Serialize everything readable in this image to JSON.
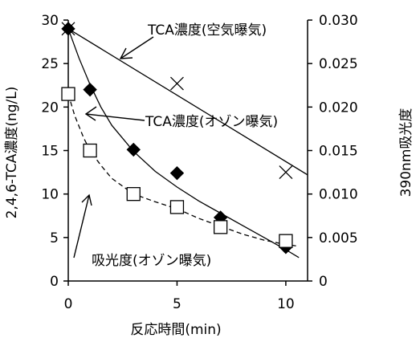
{
  "chart_data": {
    "type": "scatter",
    "xlabel": "反応時間(min)",
    "ylabel": "2,4,6-TCA濃度(ng/L)",
    "y2label": "390nm吸光度",
    "xlim": [
      0,
      11
    ],
    "ylim": [
      0,
      30
    ],
    "y2lim": [
      0,
      0.03
    ],
    "x_ticks": [
      "0",
      "5",
      "10"
    ],
    "y_ticks": [
      "0",
      "5",
      "10",
      "15",
      "20",
      "25",
      "30"
    ],
    "y2_ticks": [
      "0",
      "0.005",
      "0.010",
      "0.015",
      "0.020",
      "0.025",
      "0.030"
    ],
    "grid": false,
    "series": [
      {
        "name": "TCA濃度(空気曝気)",
        "marker": "x",
        "axis": "left",
        "points": [
          [
            0,
            29.0
          ],
          [
            5,
            22.7
          ],
          [
            10,
            12.5
          ]
        ],
        "fit": [
          [
            0,
            29.0
          ],
          [
            11,
            12.2
          ]
        ],
        "fit_style": "solid"
      },
      {
        "name": "TCA濃度(オゾン曝気)",
        "marker": "filled-diamond",
        "axis": "left",
        "points": [
          [
            0,
            29.0
          ],
          [
            1,
            22.0
          ],
          [
            3,
            15.1
          ],
          [
            5,
            12.4
          ],
          [
            7,
            7.3
          ],
          [
            10,
            3.9
          ]
        ],
        "fit": [
          [
            0,
            29.0
          ],
          [
            0.5,
            25.6
          ],
          [
            1,
            22.6
          ],
          [
            1.5,
            20.0
          ],
          [
            2,
            17.9
          ],
          [
            3,
            14.9
          ],
          [
            4,
            12.6
          ],
          [
            5,
            10.8
          ],
          [
            6,
            9.2
          ],
          [
            7,
            7.8
          ],
          [
            8,
            6.4
          ],
          [
            9,
            5.0
          ],
          [
            10,
            3.6
          ],
          [
            10.6,
            2.7
          ]
        ],
        "fit_style": "solid"
      },
      {
        "name": "吸光度(オゾン曝気)",
        "marker": "open-square",
        "axis": "right",
        "points": [
          [
            0,
            0.0215
          ],
          [
            1,
            0.015
          ],
          [
            3,
            0.01
          ],
          [
            5,
            0.0085
          ],
          [
            7,
            0.0062
          ],
          [
            10,
            0.0046
          ]
        ],
        "fit": [
          [
            0,
            0.0215
          ],
          [
            0.3,
            0.019
          ],
          [
            0.7,
            0.0165
          ],
          [
            1,
            0.015
          ],
          [
            1.5,
            0.0133
          ],
          [
            2,
            0.0118
          ],
          [
            3,
            0.01
          ],
          [
            4,
            0.0091
          ],
          [
            5,
            0.0083
          ],
          [
            6,
            0.0072
          ],
          [
            7,
            0.0063
          ],
          [
            8,
            0.0054
          ],
          [
            9,
            0.0047
          ],
          [
            10,
            0.0042
          ],
          [
            10.6,
            0.004
          ]
        ],
        "fit_style": "dashed"
      }
    ],
    "annotations": [
      "TCA濃度(空気曝気)",
      "TCA濃度(オゾン曝気)",
      "吸光度(オゾン曝気)"
    ]
  }
}
